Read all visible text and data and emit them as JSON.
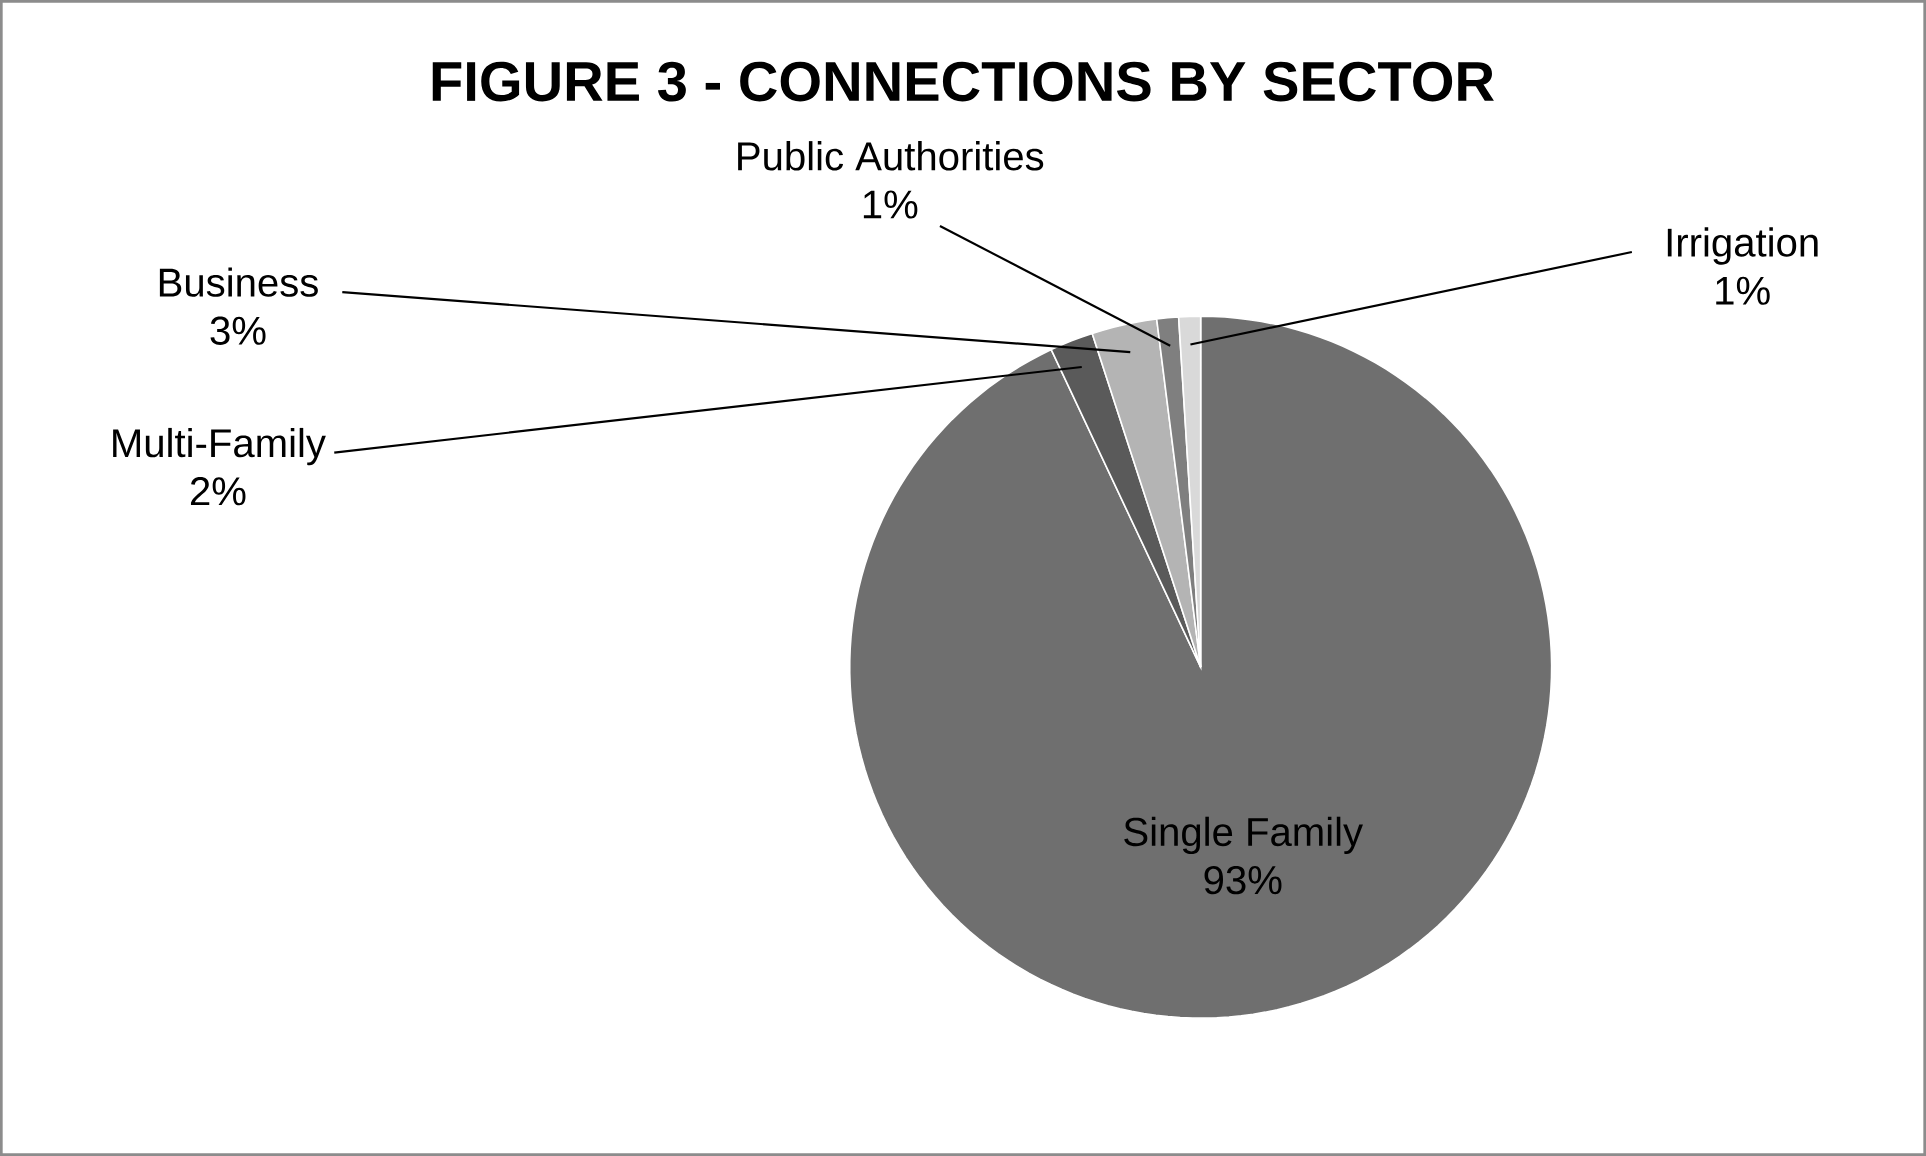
{
  "chart_data": {
    "type": "pie",
    "title": "FIGURE 3 - CONNECTIONS BY SECTOR",
    "categories": [
      "Single Family",
      "Multi-Family",
      "Business",
      "Public Authorities",
      "Irrigation"
    ],
    "values": [
      93,
      2,
      3,
      1,
      1
    ],
    "colors": [
      "#6f6f6f",
      "#5a5a5a",
      "#b4b4b4",
      "#7f7f7f",
      "#d9d9d9"
    ],
    "value_labels": [
      "93%",
      "2%",
      "3%",
      "1%",
      "1%"
    ]
  }
}
